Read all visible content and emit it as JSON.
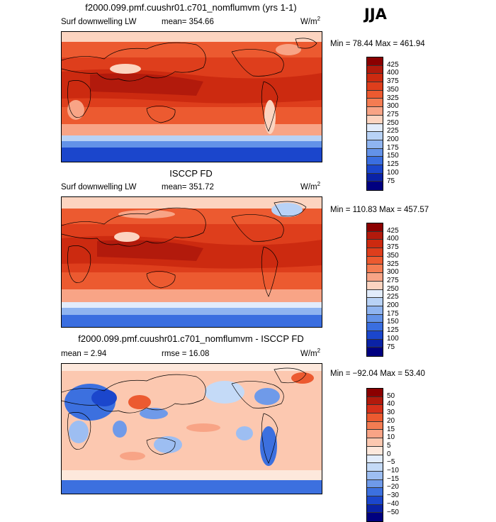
{
  "season": "JJA",
  "panels": [
    {
      "title": "f2000.099.pmf.cuushr01.c701_nomflumvm (yrs 1-1)",
      "variable": "Surf downwelling LW",
      "stat": "mean=  354.66",
      "units": "W/m",
      "units_exp": "2",
      "minmax": "Min =  78.44 Max = 461.94",
      "levels": [
        "425",
        "400",
        "375",
        "350",
        "325",
        "300",
        "275",
        "250",
        "225",
        "200",
        "175",
        "150",
        "125",
        "100",
        "75"
      ],
      "colors": [
        "#8b0000",
        "#b21a0c",
        "#cc2a10",
        "#de3e1c",
        "#ec5a30",
        "#f47c52",
        "#f8a486",
        "#fcd4c0",
        "#e2ecfb",
        "#b8d2f6",
        "#8fb4f0",
        "#6392e8",
        "#3a6ee0",
        "#1b46cc",
        "#0a22a6",
        "#000080"
      ]
    },
    {
      "title": "ISCCP FD",
      "variable": "Surf downwelling LW",
      "stat": "mean=  351.72",
      "units": "W/m",
      "units_exp": "2",
      "minmax": "Min = 110.83 Max = 457.57",
      "levels": [
        "425",
        "400",
        "375",
        "350",
        "325",
        "300",
        "275",
        "250",
        "225",
        "200",
        "175",
        "150",
        "125",
        "100",
        "75"
      ],
      "colors": [
        "#8b0000",
        "#b21a0c",
        "#cc2a10",
        "#de3e1c",
        "#ec5a30",
        "#f47c52",
        "#f8a486",
        "#fcd4c0",
        "#e2ecfb",
        "#b8d2f6",
        "#8fb4f0",
        "#6392e8",
        "#3a6ee0",
        "#1b46cc",
        "#0a22a6",
        "#000080"
      ]
    },
    {
      "title": "f2000.099.pmf.cuushr01.c701_nomflumvm - ISCCP FD",
      "stat_mean": "mean =    2.94",
      "stat_rmse": "rmse =   16.08",
      "units": "W/m",
      "units_exp": "2",
      "minmax": "Min = −92.04 Max =  53.40",
      "levels": [
        "50",
        "40",
        "30",
        "20",
        "15",
        "10",
        "5",
        "0",
        "−5",
        "−10",
        "−15",
        "−20",
        "−30",
        "−40",
        "−50"
      ],
      "colors": [
        "#8b0000",
        "#b21a0c",
        "#d6301a",
        "#ec5a30",
        "#f47c52",
        "#f8a486",
        "#fcc8b0",
        "#fde8dc",
        "#e2ecfb",
        "#c4daf7",
        "#9dbef2",
        "#6f9ae9",
        "#3c70df",
        "#1b46cc",
        "#0a22a6",
        "#000080"
      ]
    }
  ]
}
